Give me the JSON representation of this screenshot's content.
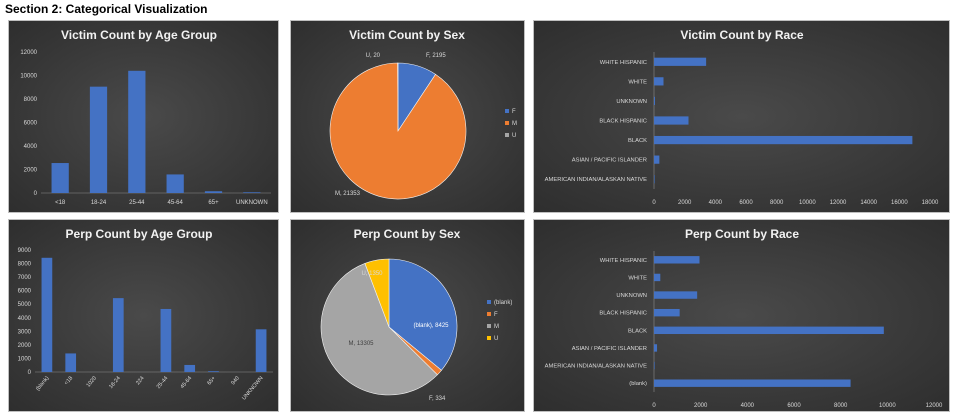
{
  "section_title": "Section 2: Categorical Visualization",
  "colors": {
    "blue": "#4472c4",
    "orange": "#ed7d31",
    "gray": "#a5a5a5",
    "gold": "#ffc000",
    "bar": "#4472c4"
  },
  "chart_data": [
    {
      "id": "victim-age",
      "type": "bar",
      "title": "Victim Count by Age Group",
      "categories": [
        "<18",
        "18-24",
        "25-44",
        "45-64",
        "65+",
        "UNKNOWN"
      ],
      "values": [
        2550,
        9050,
        10400,
        1580,
        150,
        60
      ],
      "ylim": [
        0,
        12000
      ],
      "yticks": [
        "0",
        "2000",
        "4000",
        "6000",
        "8000",
        "10000",
        "12000"
      ]
    },
    {
      "id": "victim-sex",
      "type": "pie",
      "title": "Victim Count by Sex",
      "categories": [
        "F",
        "M",
        "U"
      ],
      "values": [
        2195,
        21353,
        20
      ],
      "data_labels": [
        "F, 2195",
        "M, 21353",
        "U, 20"
      ],
      "legend": [
        "F",
        "M",
        "U"
      ],
      "legend_position": "right"
    },
    {
      "id": "victim-race",
      "type": "hbar",
      "title": "Victim Count by Race",
      "categories": [
        "WHITE HISPANIC",
        "WHITE",
        "UNKNOWN",
        "BLACK HISPANIC",
        "BLACK",
        "ASIAN / PACIFIC ISLANDER",
        "AMERICAN INDIAN/ALASKAN NATIVE"
      ],
      "values": [
        3400,
        620,
        65,
        2250,
        16850,
        350,
        10
      ],
      "xlim": [
        0,
        18000
      ],
      "xticks": [
        "0",
        "2000",
        "4000",
        "6000",
        "8000",
        "10000",
        "12000",
        "14000",
        "16000",
        "18000"
      ]
    },
    {
      "id": "perp-age",
      "type": "bar",
      "title": "Perp Count by Age Group",
      "categories": [
        "(blank)",
        "<18",
        "1020",
        "18-24",
        "224",
        "25-44",
        "45-64",
        "65+",
        "940",
        "UNKNOWN"
      ],
      "values": [
        8425,
        1370,
        1,
        5450,
        1,
        4650,
        520,
        60,
        1,
        3150
      ],
      "ylim": [
        0,
        9000
      ],
      "yticks": [
        "0",
        "1000",
        "2000",
        "3000",
        "4000",
        "5000",
        "6000",
        "7000",
        "8000",
        "9000"
      ]
    },
    {
      "id": "perp-sex",
      "type": "pie",
      "title": "Perp Count by Sex",
      "categories": [
        "(blank)",
        "F",
        "M",
        "U"
      ],
      "values": [
        8425,
        334,
        13305,
        1350
      ],
      "data_labels": [
        "(blank), 8425",
        "F, 334",
        "M, 13305",
        "U, 1350"
      ],
      "legend": [
        "(blank)",
        "F",
        "M",
        "U"
      ],
      "legend_position": "right"
    },
    {
      "id": "perp-race",
      "type": "hbar",
      "title": "Perp Count by Race",
      "categories": [
        "WHITE HISPANIC",
        "WHITE",
        "UNKNOWN",
        "BLACK HISPANIC",
        "BLACK",
        "ASIAN / PACIFIC ISLANDER",
        "AMERICAN INDIAN/ALASKAN NATIVE",
        "(blank)"
      ],
      "values": [
        1950,
        270,
        1850,
        1100,
        9850,
        130,
        5,
        8425
      ],
      "xlim": [
        0,
        12000
      ],
      "xticks": [
        "0",
        "2000",
        "4000",
        "6000",
        "8000",
        "10000",
        "12000"
      ]
    }
  ]
}
